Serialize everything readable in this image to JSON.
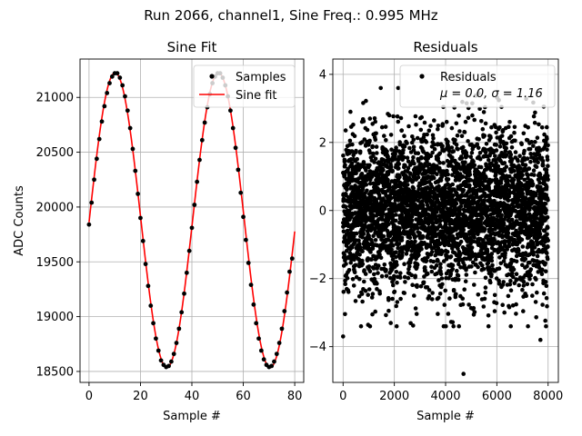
{
  "suptitle": "Run 2066, channel1, Sine Freq.: 0.995 MHz",
  "chart_data": [
    {
      "type": "line",
      "title": "Sine Fit",
      "xlabel": "Sample #",
      "ylabel": "ADC Counts",
      "xlim": [
        -3.5,
        83.5
      ],
      "ylim": [
        18400,
        21350
      ],
      "xticks": [
        0,
        20,
        40,
        60,
        80
      ],
      "yticks": [
        18500,
        19000,
        19500,
        20000,
        20500,
        21000
      ],
      "grid": true,
      "legend_position": "upper right",
      "fit": {
        "mean": 19880,
        "amplitude": 1345,
        "period": 40.2,
        "phase_sample": 0.09,
        "x_range": [
          0,
          80
        ]
      },
      "series": [
        {
          "name": "Samples",
          "style": "scatter",
          "color": "#000000",
          "x": [
            0,
            1,
            2,
            3,
            4,
            5,
            6,
            7,
            8,
            9,
            10,
            11,
            12,
            13,
            14,
            15,
            16,
            17,
            18,
            19,
            20,
            21,
            22,
            23,
            24,
            25,
            26,
            27,
            28,
            29,
            30,
            31,
            32,
            33,
            34,
            35,
            36,
            37,
            38,
            39,
            40,
            41,
            42,
            43,
            44,
            45,
            46,
            47,
            48,
            49,
            50,
            51,
            52,
            53,
            54,
            55,
            56,
            57,
            58,
            59,
            60,
            61,
            62,
            63,
            64,
            65,
            66,
            67,
            68,
            69,
            70,
            71,
            72,
            73,
            74,
            75,
            76,
            77,
            78,
            79
          ],
          "y": [
            19840,
            20040,
            20250,
            20440,
            20620,
            20780,
            20920,
            21040,
            21130,
            21190,
            21220,
            21220,
            21180,
            21110,
            21010,
            20880,
            20720,
            20530,
            20330,
            20120,
            19900,
            19690,
            19480,
            19280,
            19100,
            18940,
            18800,
            18690,
            18600,
            18560,
            18540,
            18550,
            18590,
            18660,
            18760,
            18890,
            19040,
            19210,
            19400,
            19600,
            19810,
            20020,
            20230,
            20430,
            20610,
            20770,
            20910,
            21030,
            21130,
            21190,
            21220,
            21220,
            21180,
            21110,
            21010,
            20880,
            20720,
            20540,
            20340,
            20130,
            19910,
            19700,
            19490,
            19290,
            19110,
            18940,
            18800,
            18690,
            18610,
            18560,
            18540,
            18550,
            18590,
            18660,
            18760,
            18890,
            19050,
            19220,
            19410,
            19530
          ]
        },
        {
          "name": "Sine fit",
          "style": "line",
          "color": "#ff0000"
        }
      ]
    },
    {
      "type": "scatter",
      "title": "Residuals",
      "xlabel": "Sample #",
      "ylabel": "",
      "xlim": [
        -400,
        8400
      ],
      "ylim": [
        -5.05,
        4.45
      ],
      "xticks": [
        0,
        2000,
        4000,
        6000,
        8000
      ],
      "yticks": [
        -4,
        -2,
        0,
        2,
        4
      ],
      "grid": true,
      "legend_position": "upper right",
      "series": [
        {
          "name": "Residuals",
          "color": "#000000",
          "n_points": 8000,
          "mean": 0.0,
          "sigma": 1.16
        }
      ],
      "legend_stats": "μ = 0.0, σ = 1.16",
      "outliers": [
        {
          "x": 0,
          "y": -3.7
        },
        {
          "x": 4700,
          "y": -4.8
        },
        {
          "x": 7700,
          "y": -3.8
        }
      ]
    }
  ]
}
